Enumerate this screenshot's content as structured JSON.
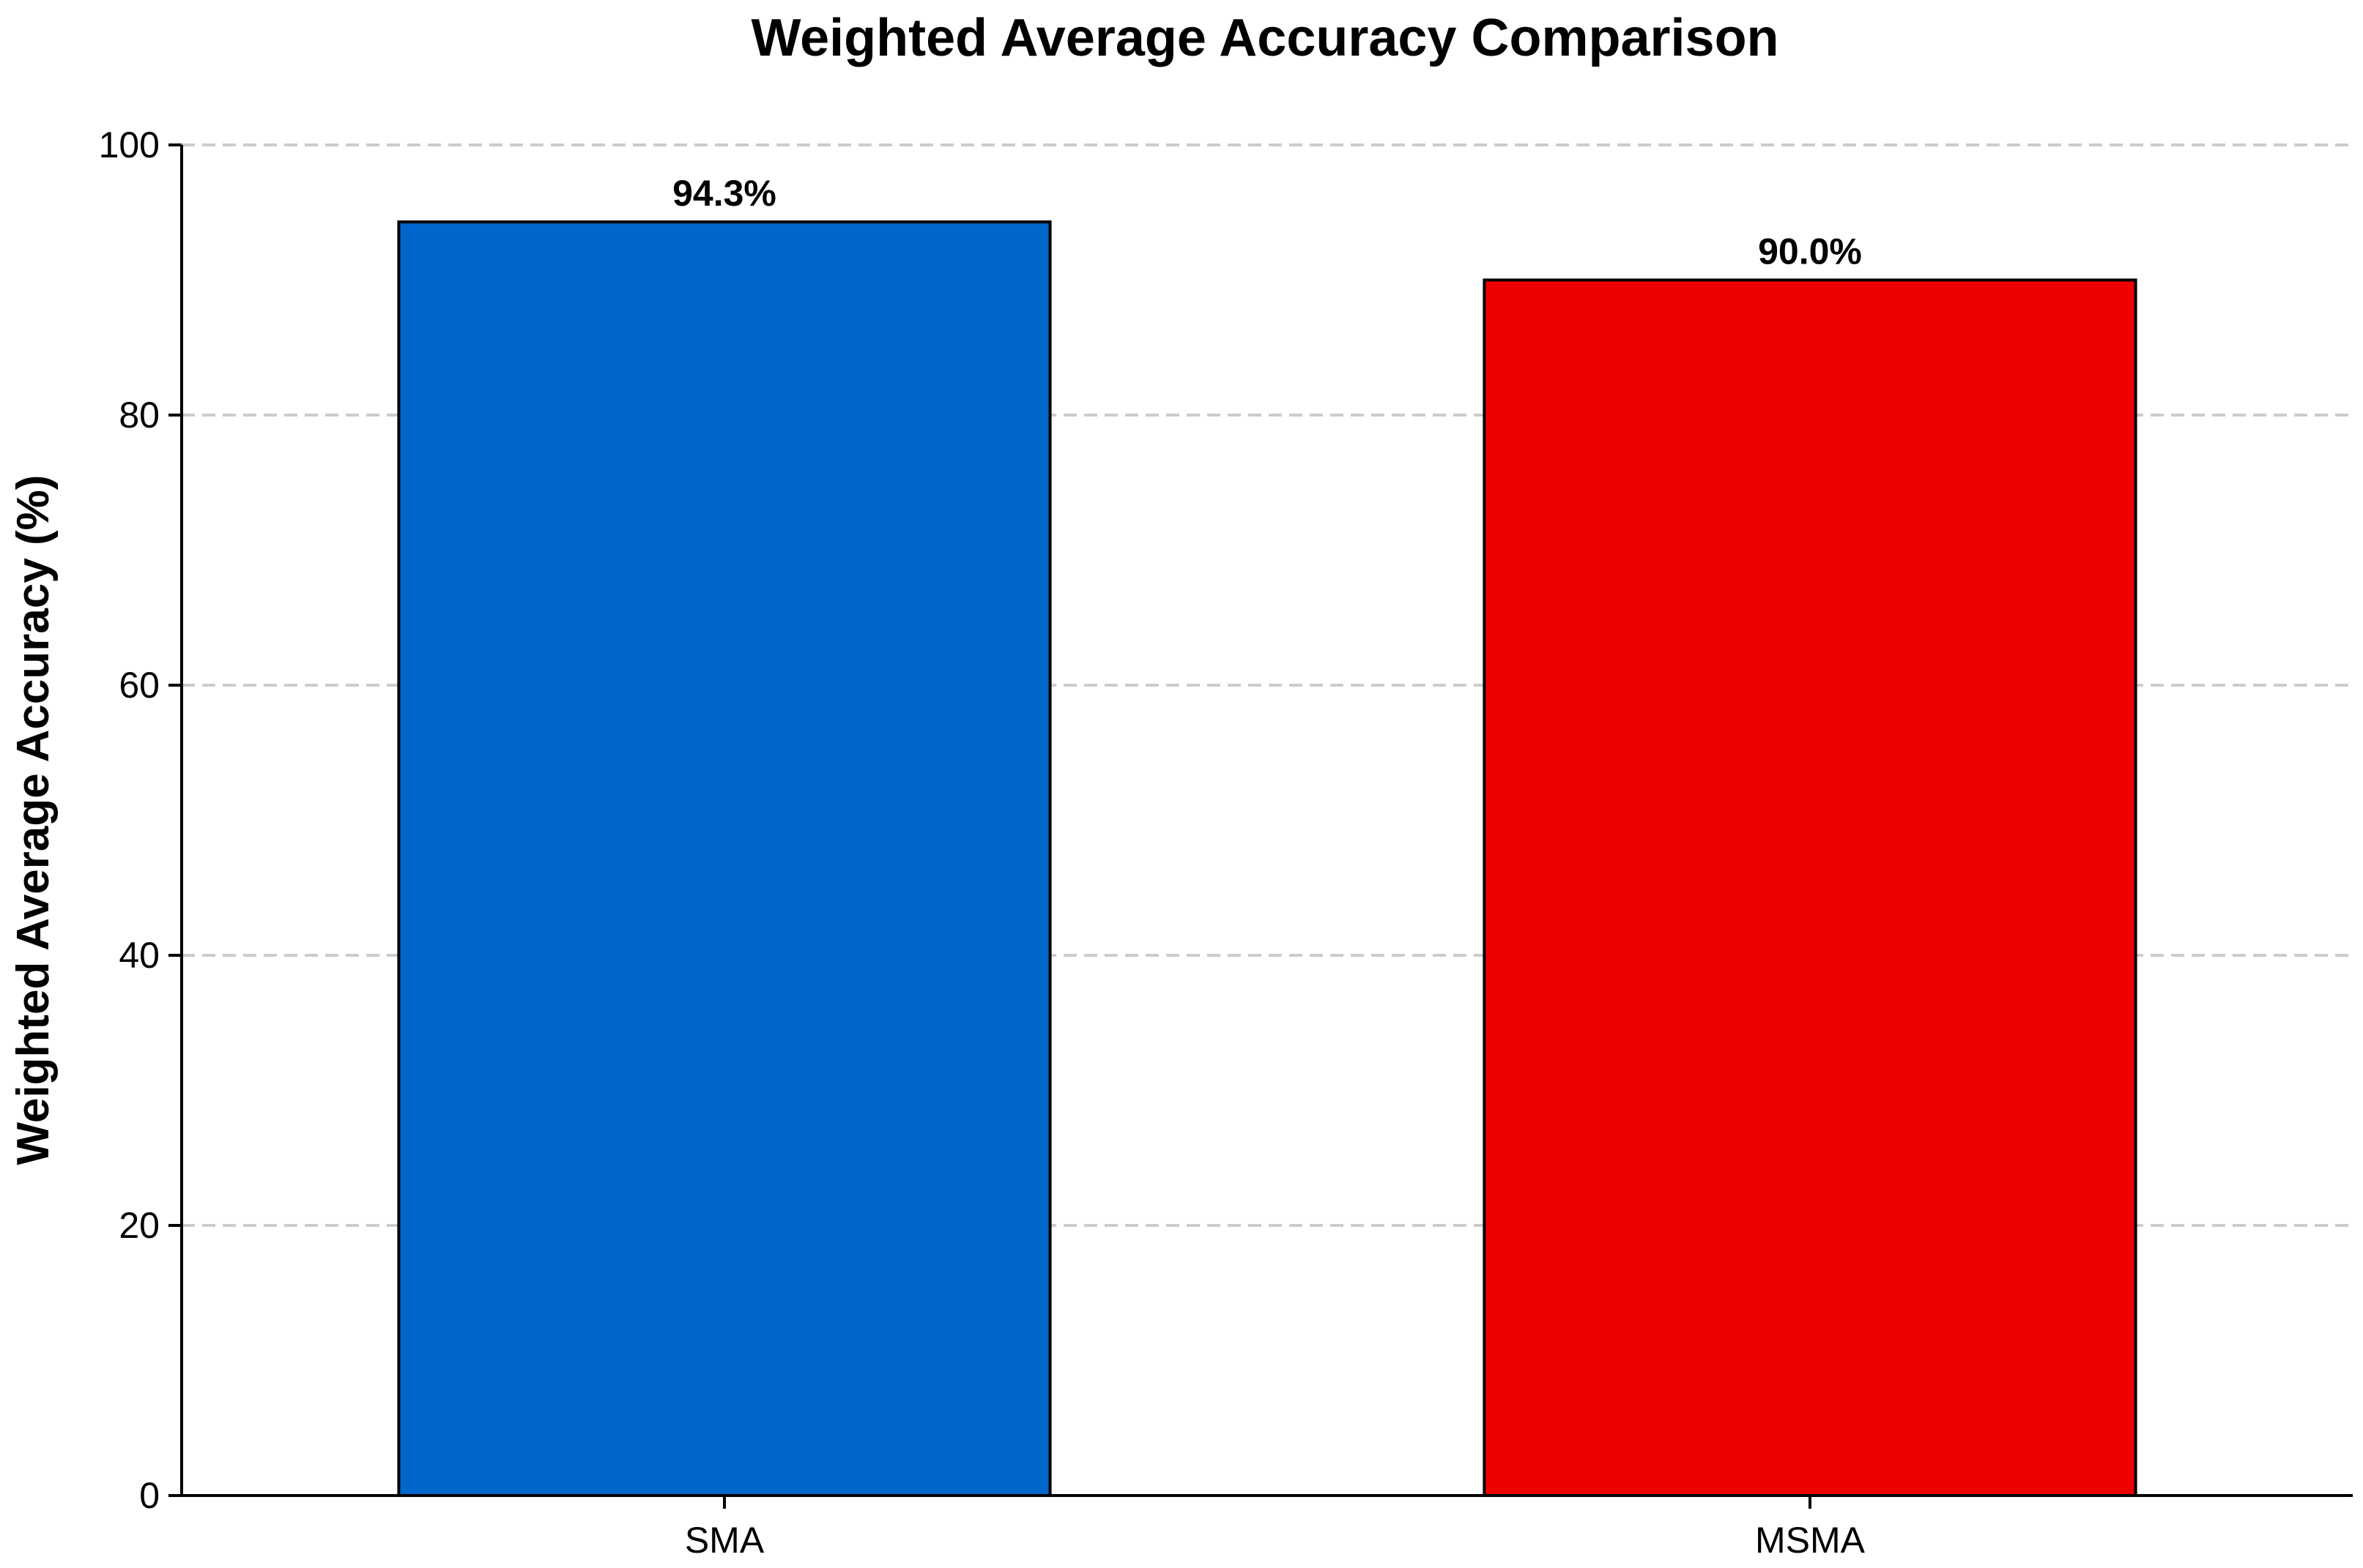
{
  "chart_data": {
    "type": "bar",
    "title": "Weighted Average Accuracy Comparison",
    "xlabel": "",
    "ylabel": "Weighted Average Accuracy (%)",
    "categories": [
      "SMA",
      "MSMA"
    ],
    "values": [
      94.3,
      90.0
    ],
    "value_labels": [
      "94.3%",
      "90.0%"
    ],
    "colors": [
      "#0066cc",
      "#ee0000"
    ],
    "ylim": [
      0,
      100
    ],
    "yticks": [
      0,
      20,
      40,
      60,
      80,
      100
    ],
    "ytick_labels": [
      "0",
      "20",
      "40",
      "60",
      "80",
      "100"
    ],
    "grid": true,
    "grid_axis": "y",
    "grid_style": "dashed",
    "legend": false
  }
}
